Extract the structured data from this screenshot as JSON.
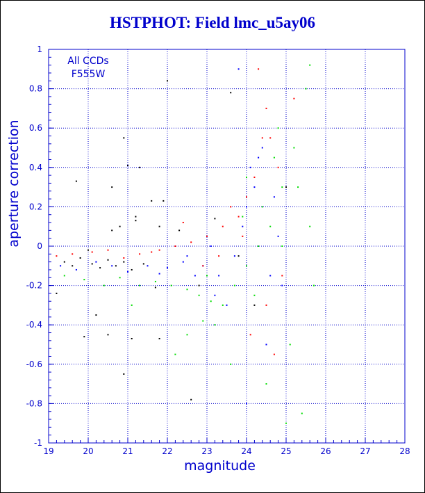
{
  "chart_data": {
    "type": "scatter",
    "title": "HSTPHOT: Field lmc_u5ay06",
    "xlabel": "magnitude",
    "ylabel": "aperture correction",
    "xlim": [
      19,
      28
    ],
    "ylim": [
      -1,
      1
    ],
    "x_ticks": [
      "19",
      "20",
      "21",
      "22",
      "23",
      "24",
      "25",
      "26",
      "27",
      "28"
    ],
    "y_ticks": [
      "-1",
      "-0.8",
      "-0.6",
      "-0.4",
      "-0.2",
      "0",
      "0.2",
      "0.4",
      "0.6",
      "0.8",
      "1"
    ],
    "grid": true,
    "annotations": [
      "All CCDs",
      "F555W"
    ],
    "colors": {
      "axis": "#0000cc",
      "grid": "#0000cc",
      "series": [
        "#000000",
        "#0000ff",
        "#ff0000",
        "#00dd00"
      ]
    },
    "series": [
      {
        "color": "#000000",
        "points": [
          [
            19.4,
            -0.08
          ],
          [
            19.6,
            -0.1
          ],
          [
            19.8,
            -0.06
          ],
          [
            20.1,
            -0.09
          ],
          [
            20.3,
            -0.11
          ],
          [
            20.5,
            -0.07
          ],
          [
            20.7,
            -0.1
          ],
          [
            20.9,
            -0.08
          ],
          [
            21.1,
            -0.12
          ],
          [
            21.4,
            -0.09
          ],
          [
            19.7,
            0.33
          ],
          [
            20.6,
            0.3
          ],
          [
            20.9,
            0.55
          ],
          [
            20.8,
            0.1
          ],
          [
            20.6,
            0.08
          ],
          [
            21.0,
            0.41
          ],
          [
            21.3,
            0.4
          ],
          [
            21.2,
            0.15
          ],
          [
            21.6,
            0.23
          ],
          [
            21.9,
            0.23
          ],
          [
            21.2,
            0.13
          ],
          [
            20.2,
            -0.35
          ],
          [
            20.5,
            -0.45
          ],
          [
            21.1,
            -0.47
          ],
          [
            21.8,
            -0.47
          ],
          [
            22.0,
            0.84
          ],
          [
            22.6,
            -0.78
          ],
          [
            23.8,
            -0.05
          ],
          [
            23.6,
            0.78
          ],
          [
            25.0,
            0.3
          ],
          [
            19.2,
            -0.24
          ],
          [
            19.9,
            -0.46
          ],
          [
            20.9,
            -0.65
          ],
          [
            22.3,
            0.08
          ],
          [
            23.2,
            0.14
          ],
          [
            24.2,
            -0.3
          ],
          [
            22.8,
            -0.2
          ],
          [
            21.7,
            -0.21
          ],
          [
            20.0,
            -0.02
          ],
          [
            21.8,
            0.1
          ]
        ]
      },
      {
        "color": "#0000ff",
        "points": [
          [
            19.3,
            -0.1
          ],
          [
            19.7,
            -0.12
          ],
          [
            20.2,
            -0.08
          ],
          [
            20.6,
            -0.1
          ],
          [
            21.0,
            -0.13
          ],
          [
            21.5,
            -0.1
          ],
          [
            22.0,
            -0.11
          ],
          [
            22.4,
            -0.08
          ],
          [
            22.9,
            -0.1
          ],
          [
            23.3,
            -0.15
          ],
          [
            23.7,
            -0.05
          ],
          [
            24.0,
            0.2
          ],
          [
            24.2,
            0.3
          ],
          [
            24.4,
            0.5
          ],
          [
            24.6,
            -0.15
          ],
          [
            24.8,
            0.05
          ],
          [
            24.1,
            0.4
          ],
          [
            23.5,
            -0.3
          ],
          [
            24.5,
            -0.5
          ],
          [
            23.9,
            0.1
          ],
          [
            24.7,
            0.25
          ],
          [
            23.2,
            -0.25
          ],
          [
            22.7,
            -0.15
          ],
          [
            24.3,
            0.45
          ],
          [
            24.0,
            -0.8
          ],
          [
            23.8,
            0.9
          ],
          [
            24.9,
            -0.2
          ],
          [
            23.1,
            0.0
          ],
          [
            22.5,
            -0.05
          ],
          [
            21.8,
            -0.14
          ]
        ]
      },
      {
        "color": "#ff0000",
        "points": [
          [
            19.2,
            -0.05
          ],
          [
            19.6,
            -0.04
          ],
          [
            20.1,
            -0.03
          ],
          [
            20.5,
            -0.02
          ],
          [
            20.9,
            -0.06
          ],
          [
            21.3,
            -0.04
          ],
          [
            21.8,
            -0.02
          ],
          [
            22.2,
            0.0
          ],
          [
            22.6,
            0.02
          ],
          [
            23.0,
            0.05
          ],
          [
            23.4,
            0.1
          ],
          [
            23.8,
            0.15
          ],
          [
            24.2,
            0.35
          ],
          [
            24.4,
            0.55
          ],
          [
            24.5,
            0.7
          ],
          [
            24.3,
            0.9
          ],
          [
            24.6,
            0.55
          ],
          [
            24.8,
            0.4
          ],
          [
            24.0,
            0.25
          ],
          [
            23.6,
            0.2
          ],
          [
            23.3,
            -0.05
          ],
          [
            22.9,
            -0.1
          ],
          [
            24.5,
            -0.3
          ],
          [
            24.9,
            -0.15
          ],
          [
            24.1,
            -0.45
          ],
          [
            22.4,
            0.12
          ],
          [
            21.6,
            -0.03
          ],
          [
            23.9,
            0.05
          ],
          [
            24.7,
            -0.55
          ],
          [
            25.2,
            0.75
          ]
        ]
      },
      {
        "color": "#00dd00",
        "points": [
          [
            19.4,
            -0.15
          ],
          [
            19.9,
            -0.17
          ],
          [
            20.4,
            -0.2
          ],
          [
            20.8,
            -0.16
          ],
          [
            21.3,
            -0.2
          ],
          [
            21.7,
            -0.18
          ],
          [
            22.1,
            -0.2
          ],
          [
            22.5,
            -0.22
          ],
          [
            22.8,
            -0.25
          ],
          [
            23.1,
            -0.28
          ],
          [
            23.4,
            -0.3
          ],
          [
            23.7,
            -0.2
          ],
          [
            24.0,
            -0.1
          ],
          [
            24.3,
            0.0
          ],
          [
            24.6,
            0.1
          ],
          [
            24.9,
            0.3
          ],
          [
            25.2,
            0.5
          ],
          [
            25.5,
            0.8
          ],
          [
            25.6,
            0.92
          ],
          [
            24.8,
            0.6
          ],
          [
            24.4,
            0.2
          ],
          [
            23.9,
            0.15
          ],
          [
            23.2,
            -0.4
          ],
          [
            22.5,
            -0.45
          ],
          [
            24.5,
            -0.7
          ],
          [
            25.0,
            -0.9
          ],
          [
            25.4,
            -0.85
          ],
          [
            25.7,
            -0.2
          ],
          [
            22.2,
            -0.55
          ],
          [
            21.1,
            -0.3
          ],
          [
            25.3,
            0.3
          ],
          [
            24.9,
            0.0
          ],
          [
            23.6,
            -0.6
          ],
          [
            24.0,
            0.35
          ],
          [
            23.0,
            -0.15
          ],
          [
            25.6,
            0.1
          ],
          [
            22.9,
            -0.38
          ],
          [
            24.2,
            -0.25
          ],
          [
            25.1,
            -0.5
          ],
          [
            24.7,
            0.45
          ]
        ]
      }
    ]
  }
}
